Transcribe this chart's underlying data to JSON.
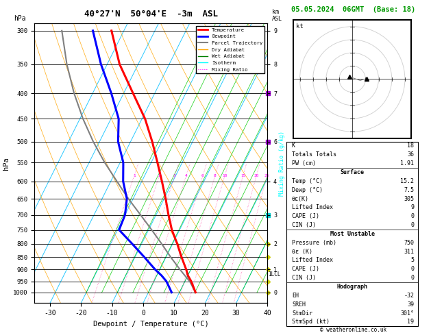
{
  "title_left": "40°27'N  50°04'E  -3m  ASL",
  "title_right": "05.05.2024  06GMT  (Base: 18)",
  "xlabel": "Dewpoint / Temperature (°C)",
  "ylabel_left": "hPa",
  "pressure_levels": [
    300,
    350,
    400,
    450,
    500,
    550,
    600,
    650,
    700,
    750,
    800,
    850,
    900,
    950,
    1000
  ],
  "xlim": [
    -35,
    40
  ],
  "p_min": 290,
  "p_max": 1050,
  "temp_profile_p": [
    1000,
    950,
    925,
    900,
    850,
    800,
    750,
    700,
    650,
    600,
    550,
    500,
    450,
    400,
    350,
    300
  ],
  "temp_profile_t": [
    15.2,
    12.0,
    10.0,
    8.5,
    5.0,
    1.5,
    -2.5,
    -6.0,
    -9.5,
    -13.5,
    -18.0,
    -23.0,
    -29.0,
    -37.0,
    -46.0,
    -54.0
  ],
  "dewp_profile_p": [
    1000,
    950,
    925,
    900,
    850,
    800,
    750,
    700,
    650,
    600,
    550,
    500,
    450,
    400,
    350,
    300
  ],
  "dewp_profile_t": [
    7.5,
    4.0,
    1.5,
    -1.5,
    -7.0,
    -13.0,
    -19.5,
    -20.0,
    -22.0,
    -26.0,
    -29.0,
    -34.0,
    -37.5,
    -44.0,
    -52.0,
    -60.0
  ],
  "parcel_profile_p": [
    1000,
    950,
    925,
    900,
    850,
    800,
    750,
    700,
    650,
    600,
    550,
    500,
    450,
    400,
    350,
    300
  ],
  "parcel_profile_t": [
    15.2,
    11.5,
    9.0,
    6.5,
    1.5,
    -3.5,
    -9.0,
    -15.0,
    -21.5,
    -28.0,
    -35.0,
    -42.0,
    -49.0,
    -56.0,
    -63.0,
    -70.0
  ],
  "bg_color": "#ffffff",
  "isotherm_color": "#00bfff",
  "dry_adiabat_color": "#ffa500",
  "wet_adiabat_color": "#00cc00",
  "mixing_ratio_color": "#ff69b4",
  "temp_color": "#ff0000",
  "dewp_color": "#0000ff",
  "parcel_color": "#808080",
  "skew_factor": 45,
  "mixing_ratio_lines": [
    1,
    2,
    3,
    4,
    6,
    8,
    10,
    15,
    20,
    25
  ],
  "lcl_pressure": 920,
  "lcl_label": "1LCL",
  "stats": {
    "K": 18,
    "Totals_Totals": 36,
    "PW_cm": 1.91,
    "Surface_Temp": 15.2,
    "Surface_Dewp": 7.5,
    "Surface_ThetaE": 305,
    "Surface_LI": 9,
    "Surface_CAPE": 0,
    "Surface_CIN": 0,
    "MU_Pressure": 750,
    "MU_ThetaE": 311,
    "MU_LI": 5,
    "MU_CAPE": 0,
    "MU_CIN": 0,
    "EH": -32,
    "SREH": 39,
    "StmDir": 301,
    "StmSpd": 19
  },
  "copyright": "© weatheronline.co.uk"
}
